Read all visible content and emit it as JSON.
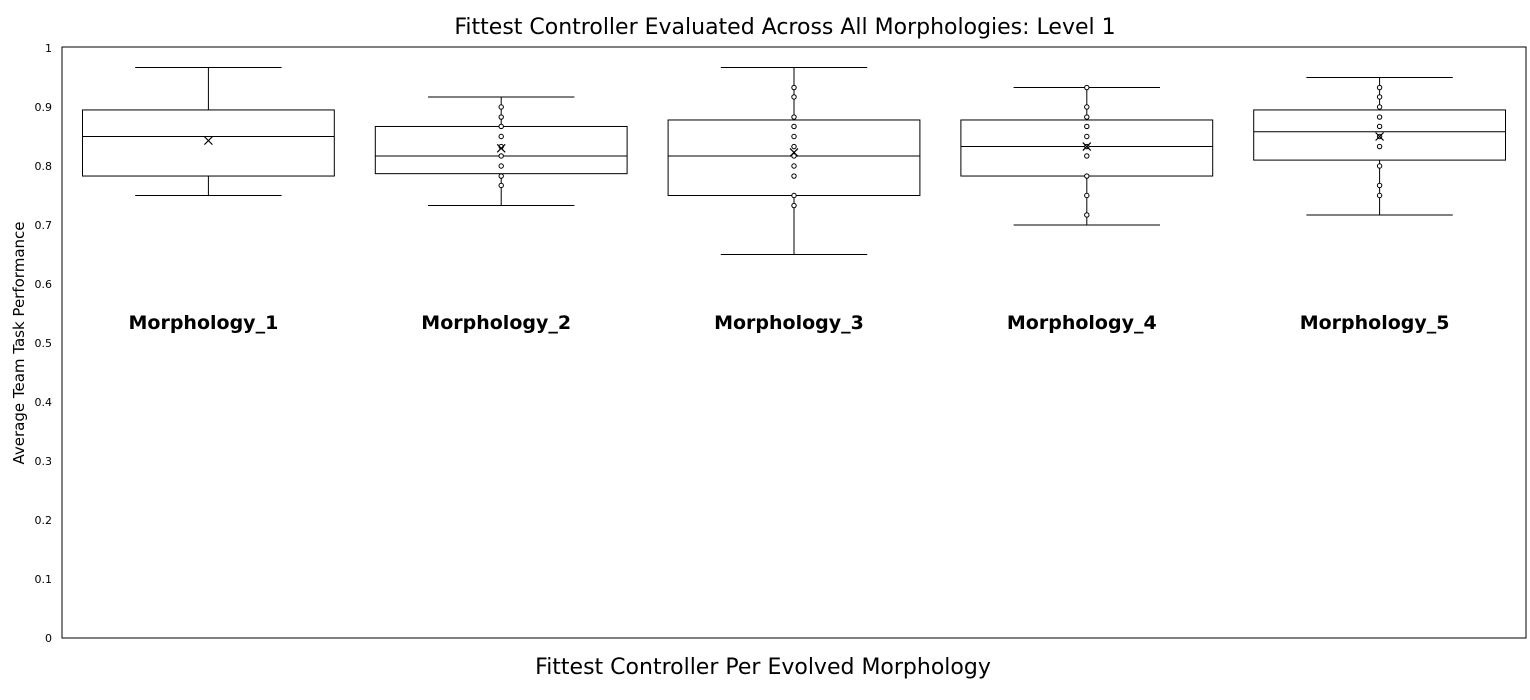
{
  "chart_data": {
    "type": "box",
    "title": "Fittest Controller Evaluated Across All Morphologies: Level 1",
    "xlabel": "Fittest Controller Per Evolved Morphology",
    "ylabel": "Average Team Task Performance",
    "ylim": [
      0,
      1
    ],
    "yticks": [
      "0",
      "0.1",
      "0.2",
      "0.3",
      "0.4",
      "0.5",
      "0.6",
      "0.7",
      "0.8",
      "0.9",
      "1"
    ],
    "grid": false,
    "categories": [
      "Morphology_1",
      "Morphology_2",
      "Morphology_3",
      "Morphology_4",
      "Morphology_5"
    ],
    "boxes": [
      {
        "category": "Morphology_1",
        "min": 0.75,
        "q1": 0.783,
        "median": 0.85,
        "q3": 0.895,
        "max": 0.967,
        "mean": 0.843,
        "points": []
      },
      {
        "category": "Morphology_2",
        "min": 0.733,
        "q1": 0.787,
        "median": 0.817,
        "q3": 0.867,
        "max": 0.917,
        "mean": 0.83,
        "points": [
          0.9,
          0.883,
          0.867,
          0.85,
          0.833,
          0.817,
          0.8,
          0.783,
          0.767
        ]
      },
      {
        "category": "Morphology_3",
        "min": 0.65,
        "q1": 0.75,
        "median": 0.817,
        "q3": 0.878,
        "max": 0.967,
        "mean": 0.823,
        "points": [
          0.933,
          0.917,
          0.883,
          0.867,
          0.85,
          0.833,
          0.817,
          0.8,
          0.783,
          0.75,
          0.733
        ]
      },
      {
        "category": "Morphology_4",
        "min": 0.7,
        "q1": 0.783,
        "median": 0.833,
        "q3": 0.878,
        "max": 0.933,
        "mean": 0.833,
        "points": [
          0.933,
          0.9,
          0.883,
          0.867,
          0.85,
          0.833,
          0.817,
          0.783,
          0.75,
          0.717
        ]
      },
      {
        "category": "Morphology_5",
        "min": 0.717,
        "q1": 0.81,
        "median": 0.858,
        "q3": 0.895,
        "max": 0.95,
        "mean": 0.85,
        "points": [
          0.933,
          0.917,
          0.9,
          0.883,
          0.867,
          0.85,
          0.833,
          0.8,
          0.767,
          0.75
        ]
      }
    ]
  }
}
